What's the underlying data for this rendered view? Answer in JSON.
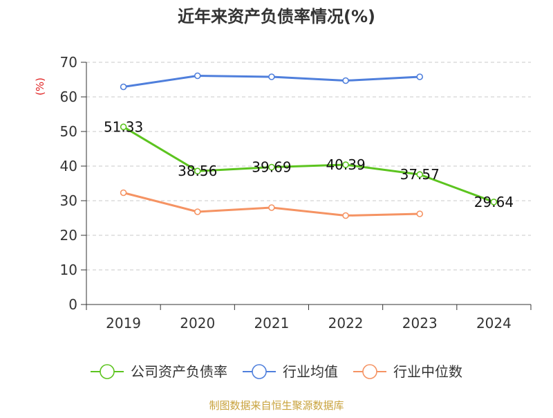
{
  "chart_data": {
    "type": "line",
    "title": "近年来资产负债率情况(%)",
    "ylabel": "(%)",
    "xlabel": "",
    "categories": [
      "2019",
      "2020",
      "2021",
      "2022",
      "2023",
      "2024"
    ],
    "ylim": [
      0,
      70
    ],
    "yticks": [
      0,
      10,
      20,
      30,
      40,
      50,
      60,
      70
    ],
    "grid": true,
    "legend_position": "bottom",
    "series": [
      {
        "name": "公司资产负债率",
        "color": "#5cc41f",
        "values": [
          51.33,
          38.56,
          39.69,
          40.39,
          37.57,
          29.64
        ],
        "labels": [
          "51.33",
          "38.56",
          "39.69",
          "40.39",
          "37.57",
          "29.64"
        ]
      },
      {
        "name": "行业均值",
        "color": "#4f7fdc",
        "values": [
          62.9,
          66.1,
          65.8,
          64.7,
          65.8,
          null
        ]
      },
      {
        "name": "行业中位数",
        "color": "#f59363",
        "values": [
          32.3,
          26.8,
          28.0,
          25.7,
          26.2,
          null
        ]
      }
    ]
  },
  "footer": {
    "source": "制图数据来自恒生聚源数据库"
  }
}
